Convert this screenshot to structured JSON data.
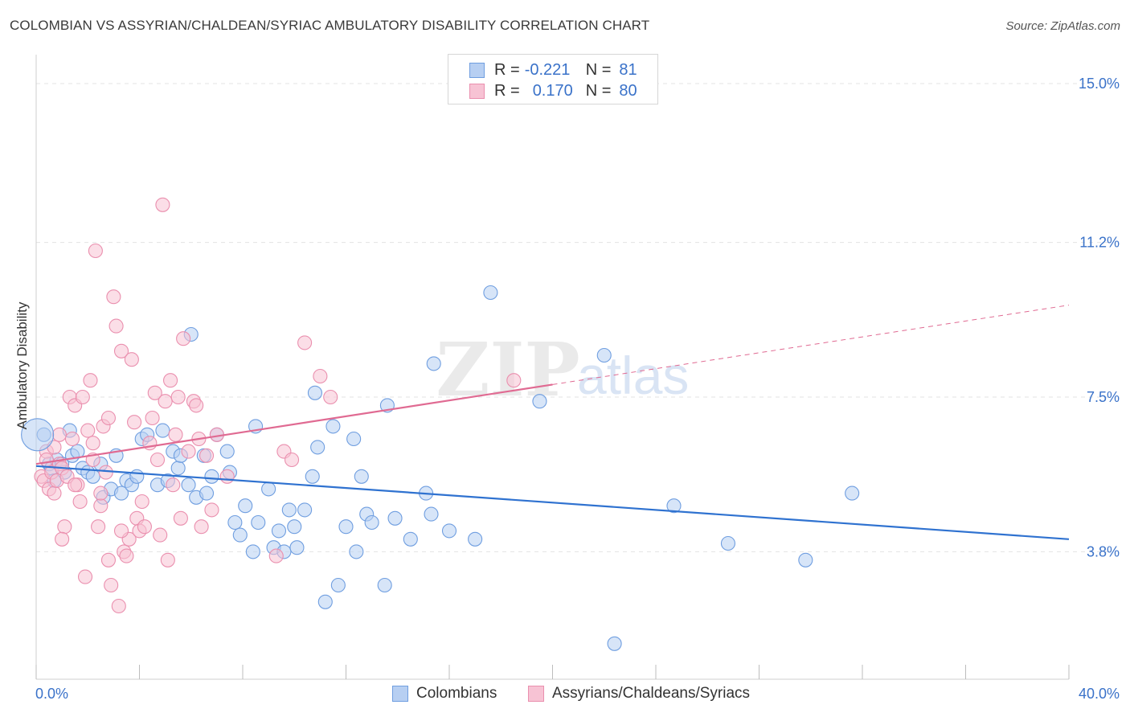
{
  "title": "COLOMBIAN VS ASSYRIAN/CHALDEAN/SYRIAC AMBULATORY DISABILITY CORRELATION CHART",
  "source": "Source: ZipAtlas.com",
  "watermark": {
    "zip": "ZIP",
    "atlas": "atlas"
  },
  "legend": {
    "r_key": "R =",
    "n_key": "N =",
    "rows": [
      {
        "r": "-0.221",
        "n": "81",
        "fill": "#a9c7f0",
        "stroke": "#6f9ee0"
      },
      {
        "r": "0.170",
        "n": "80",
        "fill": "#f7bcd0",
        "stroke": "#ea8fae"
      }
    ]
  },
  "colors": {
    "blue_fill": "#b7cff2",
    "blue_stroke": "#6f9ee0",
    "blue_line": "#2f72d0",
    "pink_fill": "#f7c3d4",
    "pink_stroke": "#ea8fae",
    "pink_line": "#e06a92",
    "tick_label": "#3a72c9",
    "grid": "#e3e3e3"
  },
  "chart_data": {
    "type": "scatter",
    "title": "COLOMBIAN VS ASSYRIAN/CHALDEAN/SYRIAC AMBULATORY DISABILITY CORRELATION CHART",
    "xlabel": "",
    "ylabel": "Ambulatory Disability",
    "xlim": [
      0,
      40
    ],
    "ylim": [
      0.75,
      15.5
    ],
    "x_tick_labels": [
      "0.0%",
      "40.0%"
    ],
    "y_ticks": [
      3.8,
      7.5,
      11.2,
      15.0
    ],
    "y_tick_labels": [
      "3.8%",
      "7.5%",
      "11.2%",
      "15.0%"
    ],
    "grid": true,
    "legend_position": "top-center",
    "series": [
      {
        "name": "Colombians",
        "color": "blue",
        "r": -0.221,
        "n": 81,
        "trend": {
          "x": [
            0,
            40
          ],
          "y": [
            5.85,
            4.1
          ],
          "dashed_from": null
        },
        "points": [
          [
            0.3,
            6.6
          ],
          [
            0.5,
            5.9
          ],
          [
            0.6,
            5.8
          ],
          [
            0.7,
            5.5
          ],
          [
            0.8,
            6.0
          ],
          [
            1.0,
            5.9
          ],
          [
            1.1,
            5.7
          ],
          [
            1.3,
            6.7
          ],
          [
            1.4,
            6.1
          ],
          [
            1.6,
            6.2
          ],
          [
            1.8,
            5.8
          ],
          [
            2.0,
            5.7
          ],
          [
            2.2,
            5.6
          ],
          [
            2.5,
            5.9
          ],
          [
            2.6,
            5.1
          ],
          [
            2.9,
            5.3
          ],
          [
            3.1,
            6.1
          ],
          [
            3.3,
            5.2
          ],
          [
            3.5,
            5.5
          ],
          [
            3.7,
            5.4
          ],
          [
            3.9,
            5.6
          ],
          [
            4.1,
            6.5
          ],
          [
            4.3,
            6.6
          ],
          [
            4.7,
            5.4
          ],
          [
            4.9,
            6.7
          ],
          [
            5.1,
            5.5
          ],
          [
            5.3,
            6.2
          ],
          [
            5.5,
            5.8
          ],
          [
            5.6,
            6.1
          ],
          [
            5.9,
            5.4
          ],
          [
            6.0,
            9.0
          ],
          [
            6.2,
            5.1
          ],
          [
            6.5,
            6.1
          ],
          [
            6.6,
            5.2
          ],
          [
            6.8,
            5.6
          ],
          [
            7.0,
            6.6
          ],
          [
            7.4,
            6.2
          ],
          [
            7.5,
            5.7
          ],
          [
            7.7,
            4.5
          ],
          [
            7.9,
            4.2
          ],
          [
            8.1,
            4.9
          ],
          [
            8.4,
            3.8
          ],
          [
            8.5,
            6.8
          ],
          [
            8.6,
            4.5
          ],
          [
            9.0,
            5.3
          ],
          [
            9.2,
            3.9
          ],
          [
            9.4,
            4.3
          ],
          [
            9.6,
            3.8
          ],
          [
            9.8,
            4.8
          ],
          [
            10.0,
            4.4
          ],
          [
            10.1,
            3.9
          ],
          [
            10.4,
            4.8
          ],
          [
            10.7,
            5.6
          ],
          [
            10.8,
            7.6
          ],
          [
            10.9,
            6.3
          ],
          [
            11.2,
            2.6
          ],
          [
            11.5,
            6.8
          ],
          [
            11.7,
            3.0
          ],
          [
            12.0,
            4.4
          ],
          [
            12.3,
            6.5
          ],
          [
            12.4,
            3.8
          ],
          [
            12.6,
            5.6
          ],
          [
            12.8,
            4.7
          ],
          [
            13.0,
            4.5
          ],
          [
            13.5,
            3.0
          ],
          [
            13.6,
            7.3
          ],
          [
            13.9,
            4.6
          ],
          [
            14.5,
            4.1
          ],
          [
            15.1,
            5.2
          ],
          [
            15.3,
            4.7
          ],
          [
            15.4,
            8.3
          ],
          [
            16.0,
            4.3
          ],
          [
            17.0,
            4.1
          ],
          [
            17.6,
            10.0
          ],
          [
            19.5,
            7.4
          ],
          [
            22.0,
            8.5
          ],
          [
            22.4,
            1.6
          ],
          [
            24.7,
            4.9
          ],
          [
            26.8,
            4.0
          ],
          [
            29.8,
            3.6
          ],
          [
            31.6,
            5.2
          ]
        ]
      },
      {
        "name": "Assyrians/Chaldeans/Syriacs",
        "color": "pink",
        "r": 0.17,
        "n": 80,
        "trend": {
          "x": [
            0,
            40
          ],
          "y": [
            5.9,
            9.7
          ],
          "dashed_from": 20
        },
        "points": [
          [
            0.2,
            5.6
          ],
          [
            0.3,
            5.5
          ],
          [
            0.4,
            6.2
          ],
          [
            0.5,
            5.3
          ],
          [
            0.6,
            5.7
          ],
          [
            0.7,
            5.2
          ],
          [
            0.8,
            5.5
          ],
          [
            0.9,
            5.9
          ],
          [
            0.9,
            6.6
          ],
          [
            1.0,
            5.8
          ],
          [
            1.1,
            4.4
          ],
          [
            1.2,
            5.6
          ],
          [
            1.3,
            7.5
          ],
          [
            1.4,
            6.5
          ],
          [
            1.5,
            7.3
          ],
          [
            1.6,
            5.4
          ],
          [
            1.7,
            5.0
          ],
          [
            1.8,
            7.5
          ],
          [
            1.9,
            3.2
          ],
          [
            2.0,
            6.7
          ],
          [
            2.1,
            7.9
          ],
          [
            2.2,
            6.4
          ],
          [
            2.3,
            11.0
          ],
          [
            2.4,
            4.4
          ],
          [
            2.5,
            4.9
          ],
          [
            2.6,
            6.8
          ],
          [
            2.7,
            5.7
          ],
          [
            2.8,
            7.0
          ],
          [
            2.9,
            3.0
          ],
          [
            3.0,
            9.9
          ],
          [
            3.1,
            9.2
          ],
          [
            3.2,
            2.5
          ],
          [
            3.3,
            8.6
          ],
          [
            3.4,
            3.8
          ],
          [
            3.5,
            3.7
          ],
          [
            3.6,
            4.1
          ],
          [
            3.7,
            8.4
          ],
          [
            3.8,
            6.9
          ],
          [
            3.9,
            4.6
          ],
          [
            4.0,
            4.3
          ],
          [
            4.2,
            4.4
          ],
          [
            4.4,
            6.4
          ],
          [
            4.6,
            7.6
          ],
          [
            4.7,
            6.0
          ],
          [
            4.8,
            4.2
          ],
          [
            4.9,
            12.1
          ],
          [
            5.0,
            7.4
          ],
          [
            5.1,
            3.6
          ],
          [
            5.2,
            7.9
          ],
          [
            5.4,
            6.6
          ],
          [
            5.5,
            7.5
          ],
          [
            5.6,
            4.6
          ],
          [
            5.7,
            8.9
          ],
          [
            5.9,
            6.2
          ],
          [
            6.1,
            7.4
          ],
          [
            6.2,
            7.3
          ],
          [
            6.3,
            6.5
          ],
          [
            6.4,
            4.4
          ],
          [
            6.6,
            6.1
          ],
          [
            6.8,
            4.8
          ],
          [
            7.0,
            6.6
          ],
          [
            7.4,
            5.6
          ],
          [
            9.3,
            3.7
          ],
          [
            9.6,
            6.2
          ],
          [
            9.9,
            6.0
          ],
          [
            10.4,
            8.8
          ],
          [
            11.0,
            8.0
          ],
          [
            11.4,
            7.5
          ],
          [
            18.5,
            7.9
          ],
          [
            0.4,
            6.0
          ],
          [
            0.7,
            6.3
          ],
          [
            1.0,
            4.1
          ],
          [
            1.5,
            5.4
          ],
          [
            2.2,
            6.0
          ],
          [
            2.5,
            5.2
          ],
          [
            2.8,
            3.6
          ],
          [
            3.3,
            4.3
          ],
          [
            4.1,
            5.0
          ],
          [
            4.5,
            7.0
          ],
          [
            5.3,
            5.4
          ]
        ]
      }
    ]
  }
}
